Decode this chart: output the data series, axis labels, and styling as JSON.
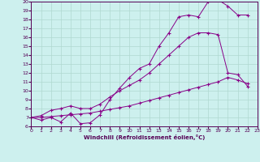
{
  "xlabel": "Windchill (Refroidissement éolien,°C)",
  "ylabel": "",
  "xlim": [
    0,
    23
  ],
  "ylim": [
    6,
    20
  ],
  "yticks": [
    6,
    7,
    8,
    9,
    10,
    11,
    12,
    13,
    14,
    15,
    16,
    17,
    18,
    19,
    20
  ],
  "xticks": [
    0,
    1,
    2,
    3,
    4,
    5,
    6,
    7,
    8,
    9,
    10,
    11,
    12,
    13,
    14,
    15,
    16,
    17,
    18,
    19,
    20,
    21,
    22,
    23
  ],
  "bg_color": "#cdf0ee",
  "grid_color": "#b0d8d0",
  "line_color": "#880088",
  "line1_x": [
    0,
    1,
    2,
    3,
    4,
    5,
    6,
    7,
    8,
    9,
    10,
    11,
    12,
    13,
    14,
    15,
    16,
    17,
    18,
    19,
    20,
    21,
    22
  ],
  "line1_y": [
    7.0,
    6.7,
    7.0,
    6.5,
    7.5,
    6.3,
    6.4,
    7.3,
    9.0,
    10.3,
    11.5,
    12.5,
    13.0,
    15.0,
    16.5,
    18.3,
    18.5,
    18.3,
    20.0,
    20.2,
    19.5,
    18.5,
    18.5
  ],
  "line2_x": [
    0,
    1,
    2,
    3,
    4,
    5,
    6,
    7,
    8,
    9,
    10,
    11,
    12,
    13,
    14,
    15,
    16,
    17,
    18,
    19,
    20,
    21,
    22
  ],
  "line2_y": [
    7.0,
    7.2,
    7.8,
    8.0,
    8.3,
    8.0,
    8.0,
    8.5,
    9.3,
    10.0,
    10.6,
    11.2,
    12.0,
    13.0,
    14.0,
    15.0,
    16.0,
    16.5,
    16.5,
    16.3,
    12.0,
    11.8,
    10.5
  ],
  "line3_x": [
    0,
    1,
    2,
    3,
    4,
    5,
    6,
    7,
    8,
    9,
    10,
    11,
    12,
    13,
    14,
    15,
    16,
    17,
    18,
    19,
    20,
    21,
    22
  ],
  "line3_y": [
    7.0,
    7.0,
    7.1,
    7.2,
    7.3,
    7.4,
    7.5,
    7.7,
    7.9,
    8.1,
    8.3,
    8.6,
    8.9,
    9.2,
    9.5,
    9.8,
    10.1,
    10.4,
    10.7,
    11.0,
    11.5,
    11.2,
    10.8
  ]
}
